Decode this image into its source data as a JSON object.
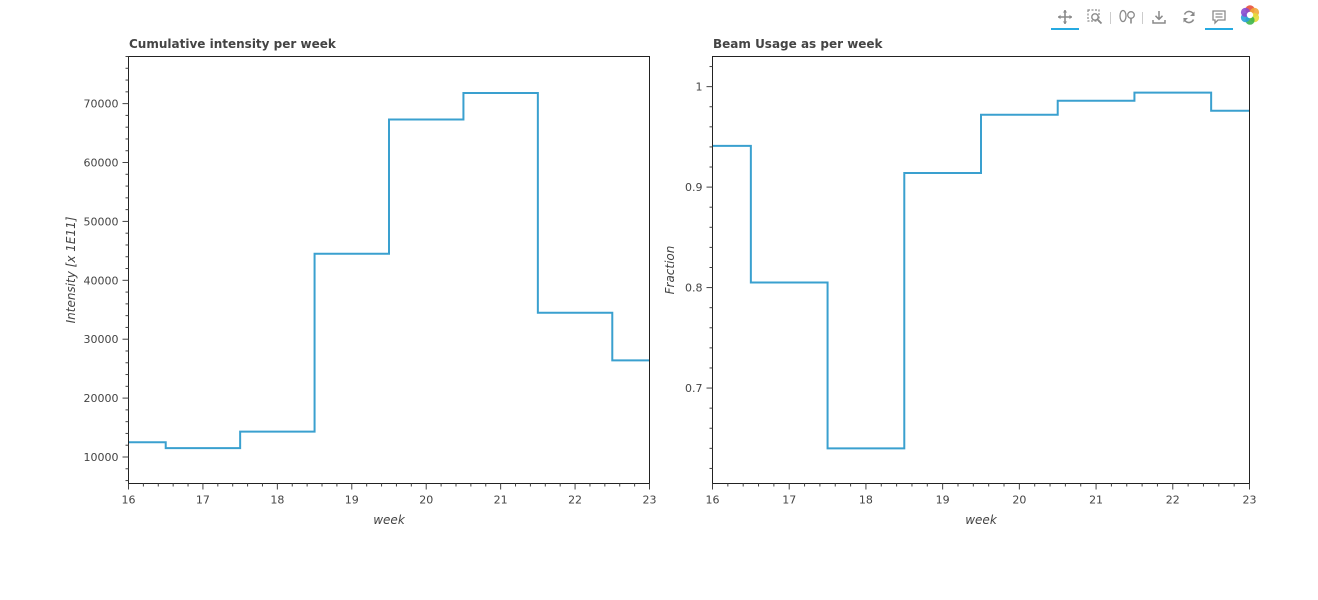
{
  "toolbar": {
    "tools": [
      {
        "name": "pan-tool",
        "icon": "pan-icon",
        "active": true
      },
      {
        "name": "box-zoom-tool",
        "icon": "box-zoom-icon",
        "active": false
      },
      {
        "name": "wheel-zoom-tool",
        "icon": "wheel-zoom-icon",
        "active": false
      },
      {
        "name": "save-tool",
        "icon": "save-icon",
        "active": false
      },
      {
        "name": "reset-tool",
        "icon": "reset-icon",
        "active": false
      },
      {
        "name": "hover-tool",
        "icon": "hover-icon",
        "active": true
      }
    ],
    "logo": "bokeh-logo",
    "accent_color": "#26aae1"
  },
  "chart_data": [
    {
      "type": "line",
      "step": "center",
      "title": "Cumulative intensity per week",
      "xlabel": "week",
      "ylabel": "Intensity [x 1E11]",
      "x": [
        16,
        17,
        18,
        19,
        20,
        21,
        22,
        23
      ],
      "series": [
        {
          "values": [
            12500,
            11500,
            14300,
            44500,
            67300,
            71800,
            34500,
            26400
          ],
          "color": "#3aa0cf"
        }
      ],
      "xlim": [
        16,
        23
      ],
      "ylim": [
        5500,
        78000
      ],
      "xticks": [
        "16",
        "17",
        "18",
        "19",
        "20",
        "21",
        "22",
        "23"
      ],
      "yticks": [
        10000,
        20000,
        30000,
        40000,
        50000,
        60000,
        70000
      ],
      "ytick_labels": [
        "10000",
        "20000",
        "30000",
        "40000",
        "50000",
        "60000",
        "70000"
      ],
      "grid": false,
      "legend": "none"
    },
    {
      "type": "line",
      "step": "center",
      "title": "Beam Usage as per week",
      "xlabel": "week",
      "ylabel": "Fraction",
      "x": [
        16,
        17,
        18,
        19,
        20,
        21,
        22,
        23
      ],
      "series": [
        {
          "values": [
            0.941,
            0.805,
            0.64,
            0.914,
            0.972,
            0.986,
            0.994,
            0.976
          ],
          "color": "#3aa0cf"
        }
      ],
      "xlim": [
        16,
        23
      ],
      "ylim": [
        0.605,
        1.03
      ],
      "xticks": [
        "16",
        "17",
        "18",
        "19",
        "20",
        "21",
        "22",
        "23"
      ],
      "yticks": [
        0.7,
        0.8,
        0.9,
        1.0
      ],
      "ytick_labels": [
        "0.7",
        "0.8",
        "0.9",
        "1"
      ],
      "grid": false,
      "legend": "none"
    }
  ]
}
